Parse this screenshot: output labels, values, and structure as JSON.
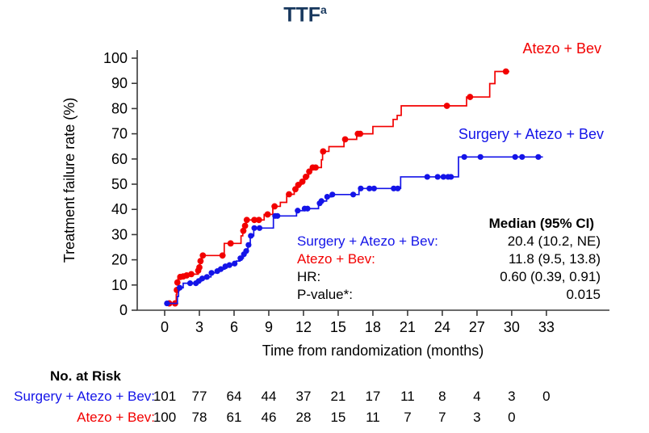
{
  "title": {
    "text": "TTF",
    "superscript": "a"
  },
  "colors": {
    "red": "#f20000",
    "blue": "#1414e8",
    "title_navy": "#17375d",
    "axis": "#3a3a3a"
  },
  "legend": {
    "red_label": "Atezo + Bev",
    "blue_label": "Surgery + Atezo + Bev"
  },
  "stats": {
    "header": "Median (95% CI)",
    "rows": [
      {
        "label": "Surgery + Atezo + Bev:",
        "value": "20.4 (10.2, NE)",
        "color": "blue"
      },
      {
        "label": "Atezo + Bev:",
        "value": "11.8 (9.5, 13.8)",
        "color": "red"
      },
      {
        "label": "HR:",
        "value": "0.60 (0.39, 0.91)",
        "color": "black"
      },
      {
        "label": "P-value*:",
        "value": "0.015",
        "color": "black"
      }
    ]
  },
  "chart_data": {
    "type": "line",
    "subtype": "step-cumulative-incidence",
    "title": "TTFa",
    "xlabel": "Time from randomization (months)",
    "ylabel": "Treatment failure rate (%)",
    "xlim": [
      0,
      38.5
    ],
    "ylim": [
      0,
      100
    ],
    "x_ticks": [
      0,
      3,
      6,
      9,
      12,
      15,
      18,
      21,
      24,
      27,
      30,
      33
    ],
    "y_ticks": [
      0,
      10,
      20,
      30,
      40,
      50,
      60,
      70,
      80,
      90,
      100
    ],
    "grid": false,
    "legend_position": "annotations-on-plot",
    "series": [
      {
        "name": "Atezo + Bev",
        "color": "#f20000",
        "steps": [
          [
            0,
            2.7
          ],
          [
            1.0,
            6.2
          ],
          [
            1.05,
            9.0
          ],
          [
            1.15,
            13.2
          ],
          [
            1.8,
            13.8
          ],
          [
            2.2,
            14.3
          ],
          [
            2.9,
            15.7
          ],
          [
            3.05,
            18.6
          ],
          [
            3.2,
            21.7
          ],
          [
            5.15,
            26.5
          ],
          [
            6.6,
            29.5
          ],
          [
            6.75,
            31.5
          ],
          [
            6.9,
            33.5
          ],
          [
            7.05,
            35.8
          ],
          [
            8.6,
            38.0
          ],
          [
            9.35,
            41.2
          ],
          [
            10.0,
            42.8
          ],
          [
            10.55,
            46.0
          ],
          [
            11.2,
            48.0
          ],
          [
            11.45,
            49.7
          ],
          [
            11.8,
            51.0
          ],
          [
            12.1,
            52.9
          ],
          [
            12.45,
            55.0
          ],
          [
            12.65,
            56.6
          ],
          [
            13.55,
            59.7
          ],
          [
            13.65,
            63.0
          ],
          [
            14.2,
            64.9
          ],
          [
            15.5,
            67.8
          ],
          [
            16.6,
            70.0
          ],
          [
            18.0,
            72.9
          ],
          [
            19.75,
            75.7
          ],
          [
            20.1,
            77.3
          ],
          [
            20.45,
            81.1
          ],
          [
            26.1,
            84.6
          ],
          [
            28.1,
            89.9
          ],
          [
            28.55,
            94.7
          ],
          [
            29.8,
            94.7
          ]
        ],
        "censor_dots": [
          [
            0.4,
            2.7
          ],
          [
            0.9,
            2.7
          ],
          [
            1.05,
            8.0
          ],
          [
            1.1,
            11.0
          ],
          [
            1.35,
            13.2
          ],
          [
            1.6,
            13.4
          ],
          [
            1.9,
            13.8
          ],
          [
            2.3,
            14.3
          ],
          [
            2.9,
            15.7
          ],
          [
            3.0,
            17.0
          ],
          [
            3.1,
            19.5
          ],
          [
            3.3,
            21.7
          ],
          [
            5.0,
            21.7
          ],
          [
            5.7,
            26.5
          ],
          [
            6.8,
            31.5
          ],
          [
            6.95,
            33.5
          ],
          [
            7.1,
            35.8
          ],
          [
            7.75,
            35.8
          ],
          [
            8.15,
            35.8
          ],
          [
            8.9,
            38.0
          ],
          [
            9.5,
            41.2
          ],
          [
            10.75,
            46.0
          ],
          [
            11.3,
            48.0
          ],
          [
            11.55,
            49.7
          ],
          [
            11.9,
            51.0
          ],
          [
            12.2,
            52.9
          ],
          [
            12.5,
            55.0
          ],
          [
            12.8,
            56.6
          ],
          [
            13.05,
            56.6
          ],
          [
            13.7,
            63.0
          ],
          [
            15.6,
            67.8
          ],
          [
            16.7,
            70.0
          ],
          [
            16.9,
            70.0
          ],
          [
            24.4,
            81.1
          ],
          [
            26.4,
            84.6
          ],
          [
            29.5,
            94.7
          ]
        ]
      },
      {
        "name": "Surgery + Atezo + Bev",
        "color": "#1414e8",
        "steps": [
          [
            0,
            2.7
          ],
          [
            1.1,
            5.5
          ],
          [
            1.2,
            8.9
          ],
          [
            1.6,
            10.7
          ],
          [
            2.9,
            11.6
          ],
          [
            3.2,
            12.6
          ],
          [
            3.6,
            13.2
          ],
          [
            4.0,
            14.8
          ],
          [
            4.5,
            15.5
          ],
          [
            4.8,
            16.3
          ],
          [
            5.2,
            17.4
          ],
          [
            5.5,
            17.9
          ],
          [
            6.0,
            18.5
          ],
          [
            6.2,
            19.5
          ],
          [
            6.5,
            20.6
          ],
          [
            6.8,
            22.2
          ],
          [
            7.0,
            23.5
          ],
          [
            7.2,
            25.9
          ],
          [
            7.4,
            29.5
          ],
          [
            7.7,
            32.6
          ],
          [
            9.4,
            37.4
          ],
          [
            11.4,
            39.5
          ],
          [
            12.0,
            40.3
          ],
          [
            13.3,
            42.4
          ],
          [
            13.5,
            43.3
          ],
          [
            14.0,
            45.0
          ],
          [
            14.4,
            45.9
          ],
          [
            16.8,
            48.3
          ],
          [
            20.4,
            52.9
          ],
          [
            25.4,
            60.8
          ],
          [
            32.7,
            60.8
          ]
        ],
        "censor_dots": [
          [
            0.2,
            2.7
          ],
          [
            1.3,
            8.9
          ],
          [
            2.2,
            10.7
          ],
          [
            2.7,
            10.7
          ],
          [
            2.95,
            11.6
          ],
          [
            3.25,
            12.6
          ],
          [
            3.65,
            13.2
          ],
          [
            4.05,
            14.8
          ],
          [
            4.55,
            15.5
          ],
          [
            4.85,
            16.3
          ],
          [
            5.25,
            17.4
          ],
          [
            5.6,
            17.9
          ],
          [
            6.05,
            18.5
          ],
          [
            6.55,
            20.6
          ],
          [
            6.85,
            22.2
          ],
          [
            7.05,
            23.5
          ],
          [
            7.25,
            25.9
          ],
          [
            7.45,
            29.5
          ],
          [
            7.75,
            32.6
          ],
          [
            8.2,
            32.6
          ],
          [
            9.55,
            37.4
          ],
          [
            9.75,
            37.4
          ],
          [
            11.5,
            39.5
          ],
          [
            12.1,
            40.3
          ],
          [
            12.35,
            40.3
          ],
          [
            13.4,
            42.4
          ],
          [
            13.55,
            43.3
          ],
          [
            14.05,
            45.0
          ],
          [
            14.5,
            45.9
          ],
          [
            16.3,
            45.9
          ],
          [
            16.95,
            48.3
          ],
          [
            17.7,
            48.3
          ],
          [
            18.1,
            48.3
          ],
          [
            19.8,
            48.3
          ],
          [
            20.15,
            48.3
          ],
          [
            22.7,
            52.9
          ],
          [
            23.6,
            52.9
          ],
          [
            24.1,
            52.9
          ],
          [
            24.5,
            52.9
          ],
          [
            24.75,
            52.9
          ],
          [
            25.9,
            60.8
          ],
          [
            27.3,
            60.8
          ],
          [
            30.3,
            60.8
          ],
          [
            30.9,
            60.8
          ],
          [
            32.3,
            60.8
          ]
        ]
      }
    ]
  },
  "risk_table": {
    "title": "No. at Risk",
    "months": [
      0,
      3,
      6,
      9,
      12,
      15,
      18,
      21,
      24,
      27,
      30,
      33
    ],
    "rows": [
      {
        "label": "Surgery + Atezo + Bev:",
        "color": "blue",
        "values": [
          101,
          77,
          64,
          44,
          37,
          21,
          17,
          11,
          8,
          4,
          3,
          0
        ]
      },
      {
        "label": "Atezo + Bev:",
        "color": "red",
        "values": [
          100,
          78,
          61,
          46,
          28,
          15,
          11,
          7,
          7,
          3,
          0
        ]
      }
    ]
  }
}
